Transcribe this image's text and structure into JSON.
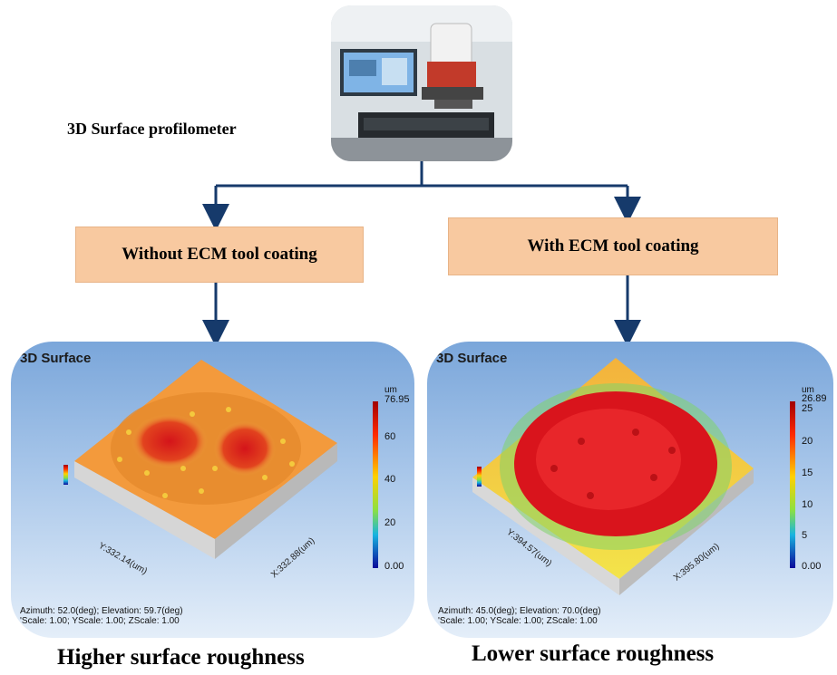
{
  "header": {
    "title": "3D Surface profilometer"
  },
  "branches": {
    "left": {
      "label": "Without ECM tool coating"
    },
    "right": {
      "label": "With ECM tool coating"
    }
  },
  "panels": {
    "left": {
      "title": "3D Surface",
      "unit": "um",
      "scale_max": "76.95",
      "ticks": [
        "60",
        "40",
        "20",
        "0.00"
      ],
      "x_axis": "X:332.88(um)",
      "y_axis": "Y:332.14(um)",
      "footer_line1": "Azimuth: 52.0(deg); Elevation: 59.7(deg)",
      "footer_line2": "'Scale: 1.00; YScale: 1.00; ZScale: 1.00"
    },
    "right": {
      "title": "3D Surface",
      "unit": "um",
      "scale_max": "26.89",
      "ticks": [
        "25",
        "20",
        "15",
        "10",
        "5",
        "0.00"
      ],
      "x_axis": "X:395.80(um)",
      "y_axis": "Y:394.57(um)",
      "footer_line1": "Azimuth: 45.0(deg); Elevation: 70.0(deg)",
      "footer_line2": "'Scale: 1.00; YScale: 1.00; ZScale: 1.00"
    }
  },
  "captions": {
    "left": "Higher surface roughness",
    "right": "Lower surface roughness"
  },
  "colors": {
    "arrow": "#163a6b",
    "box_fill": "#f8c9a0",
    "surface": "#f0a040"
  }
}
